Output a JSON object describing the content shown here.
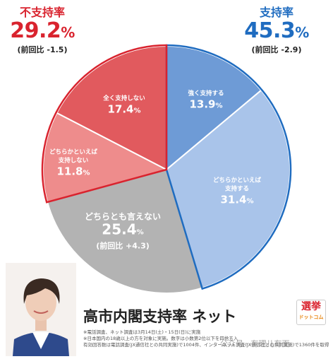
{
  "header_left": {
    "label": "不支持率",
    "value": "29.2",
    "unit": "%",
    "prev": "(前回比 -1.5)"
  },
  "header_right": {
    "label": "支持率",
    "value": "45.3",
    "unit": "%",
    "prev": "(前回比 -2.9)"
  },
  "chart_data": {
    "type": "pie",
    "slices": [
      {
        "name": "強く支持する",
        "value": 13.9,
        "color": "#6e9bd6"
      },
      {
        "name": "どちらかといえば支持する",
        "value": 31.4,
        "color": "#a9c4ea"
      },
      {
        "name": "どちらとも言えない",
        "value": 25.4,
        "color": "#b3b3b3",
        "prev": "(前回比 +4.3)"
      },
      {
        "name": "どちらかといえば支持しない",
        "value": 11.8,
        "color": "#ee8c8c"
      },
      {
        "name": "全く支持しない",
        "value": 17.4,
        "color": "#e15a5e"
      }
    ],
    "start_angle_deg": 0,
    "direction": "clockwise"
  },
  "slice_labels": {
    "s0_name": "強く支持する",
    "s0_val": "13.9",
    "s1_name1": "どちらかといえば",
    "s1_name2": "支持する",
    "s1_val": "31.4",
    "s2_name": "どちらとも言えない",
    "s2_val": "25.4",
    "s2_prev": "(前回比 +4.3)",
    "s3_name1": "どちらかといえば",
    "s3_name2": "支持しない",
    "s3_val": "11.8",
    "s4_name": "全く支持しない",
    "s4_val": "17.4",
    "unit": "%"
  },
  "title": "高市内閣支持率 ネット",
  "notes": [
    "※電話調査、ネット調査は3月14日(土)・15日(日)に実施",
    "※日本国内の18歳以上の方を対象に実施。数字は小数第2位以下を四捨五入",
    "有効回答数は電話調査(JX通信社との共同実施)で1004件、インターネット調査(JX通信社との共同実施)で1360件を取得"
  ],
  "logo": {
    "line1": "選挙",
    "line2": "ドットコム"
  },
  "watermark": "公众号 · 有理儿有面"
}
